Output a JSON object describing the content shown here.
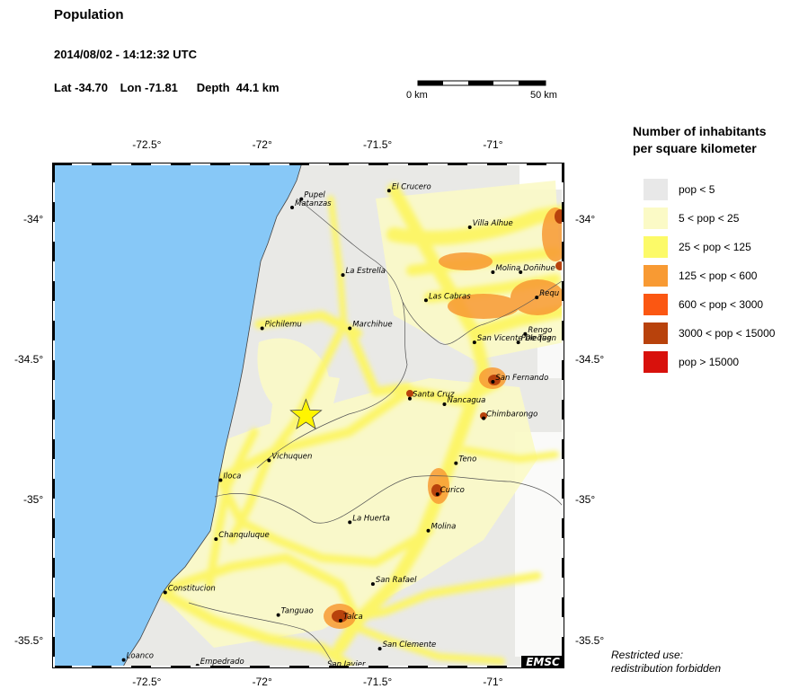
{
  "header": {
    "title": "Population",
    "datetime": "2014/08/02 - 14:12:32 UTC",
    "lat": "Lat -34.70",
    "lon": "Lon -71.81",
    "depth": "Depth  44.1 km"
  },
  "scale": {
    "start_label": "0 km",
    "end_label": "50 km"
  },
  "legend": {
    "title_line1": "Number of inhabitants",
    "title_line2": "per square kilometer",
    "items": [
      {
        "label": "pop < 5",
        "color": "#e8e8e8"
      },
      {
        "label": "5 < pop < 25",
        "color": "#fbfac6"
      },
      {
        "label": "25 < pop < 125",
        "color": "#fcfa68"
      },
      {
        "label": "125 < pop < 600",
        "color": "#f89a33"
      },
      {
        "label": "600 < pop < 3000",
        "color": "#fb5712"
      },
      {
        "label": "3000 < pop < 15000",
        "color": "#b8420c"
      },
      {
        "label": "pop > 15000",
        "color": "#d8110c"
      }
    ]
  },
  "axes": {
    "lon_ticks": [
      "-72.5°",
      "-72°",
      "-71.5°",
      "-71°"
    ],
    "lat_ticks": [
      "-34°",
      "-34.5°",
      "-35°",
      "-35.5°"
    ]
  },
  "map": {
    "epicenter": {
      "lat": -34.7,
      "lon": -71.81
    },
    "ocean_color": "#87c8f7",
    "cities": [
      {
        "name": "El Crucero",
        "lat": -33.9,
        "lon": -71.45
      },
      {
        "name": "Pupel",
        "lat": -33.93,
        "lon": -71.83
      },
      {
        "name": "Matanzas",
        "lat": -33.96,
        "lon": -71.87
      },
      {
        "name": "Villa Alhue",
        "lat": -34.03,
        "lon": -71.1
      },
      {
        "name": "La Estrella",
        "lat": -34.2,
        "lon": -71.65
      },
      {
        "name": "Molina",
        "lat": -34.19,
        "lon": -71.0
      },
      {
        "name": "Doñihue",
        "lat": -34.19,
        "lon": -70.88
      },
      {
        "name": "Las Cabras",
        "lat": -34.29,
        "lon": -71.29
      },
      {
        "name": "Requ",
        "lat": -34.28,
        "lon": -70.81
      },
      {
        "name": "Pichilemu",
        "lat": -34.39,
        "lon": -72.0
      },
      {
        "name": "Marchihue",
        "lat": -34.39,
        "lon": -71.62
      },
      {
        "name": "Rengo",
        "lat": -34.41,
        "lon": -70.86
      },
      {
        "name": "San Vicente De Tag",
        "lat": -34.44,
        "lon": -71.08
      },
      {
        "name": "Pelequen",
        "lat": -34.44,
        "lon": -70.89
      },
      {
        "name": "San Fernando",
        "lat": -34.58,
        "lon": -71.0
      },
      {
        "name": "Santa Cruz",
        "lat": -34.64,
        "lon": -71.36
      },
      {
        "name": "Nancagua",
        "lat": -34.66,
        "lon": -71.21
      },
      {
        "name": "Chimbarongo",
        "lat": -34.71,
        "lon": -71.04
      },
      {
        "name": "Vichuquen",
        "lat": -34.86,
        "lon": -71.97
      },
      {
        "name": "Teno",
        "lat": -34.87,
        "lon": -71.16
      },
      {
        "name": "Iloca",
        "lat": -34.93,
        "lon": -72.18
      },
      {
        "name": "Curico",
        "lat": -34.98,
        "lon": -71.24
      },
      {
        "name": "La Huerta",
        "lat": -35.08,
        "lon": -71.62
      },
      {
        "name": "Molina",
        "lat": -35.11,
        "lon": -71.28
      },
      {
        "name": "Chanquluque",
        "lat": -35.14,
        "lon": -72.2
      },
      {
        "name": "San Rafael",
        "lat": -35.3,
        "lon": -71.52
      },
      {
        "name": "Constitucion",
        "lat": -35.33,
        "lon": -72.42
      },
      {
        "name": "Tanguao",
        "lat": -35.41,
        "lon": -71.93
      },
      {
        "name": "Talca",
        "lat": -35.43,
        "lon": -71.66
      },
      {
        "name": "San Clemente",
        "lat": -35.53,
        "lon": -71.49
      },
      {
        "name": "Loanco",
        "lat": -35.57,
        "lon": -72.6
      },
      {
        "name": "Empedrado",
        "lat": -35.59,
        "lon": -72.28
      },
      {
        "name": "San Javier",
        "lat": -35.6,
        "lon": -71.73
      }
    ]
  },
  "badge": "EMSC",
  "restricted": {
    "line1": "Restricted use:",
    "line2": "redistribution forbidden"
  }
}
